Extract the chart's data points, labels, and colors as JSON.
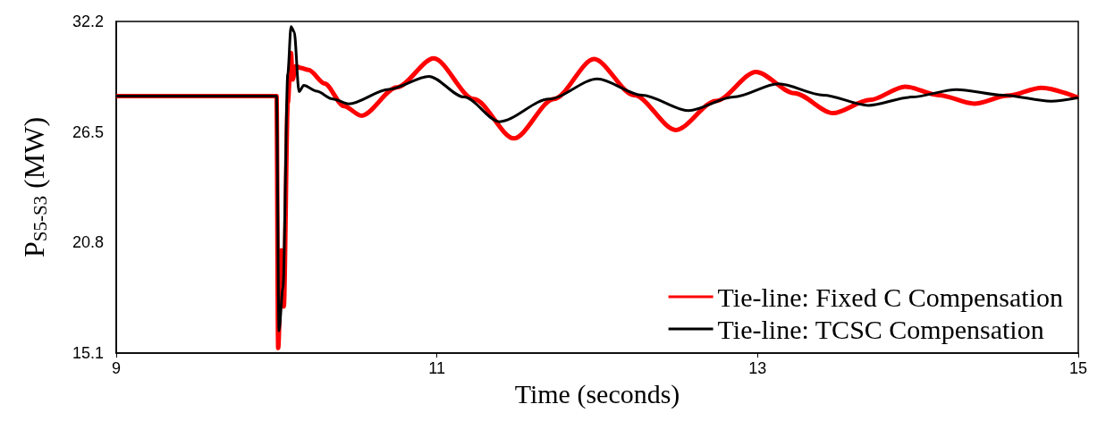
{
  "chart_data": {
    "type": "line",
    "xlabel": "Time (seconds)",
    "ylabel": "P$_{S5-S3}$ (MW)",
    "xlim": [
      9,
      15
    ],
    "xticks": [
      9,
      11,
      13,
      15
    ],
    "ylim": [
      15.1,
      32.2
    ],
    "yticks": [
      15.1,
      20.8,
      26.5,
      32.2
    ],
    "grid": false,
    "legend": "bottom right",
    "marker": "none",
    "line_style": "solid",
    "series": [
      {
        "name": "Tie-line: Fixed C Compensation",
        "color": "#ff0000",
        "x": [
          9,
          10.0,
          10.01,
          10.03,
          10.045,
          10.07,
          10.09,
          10.1,
          10.12,
          10.15,
          10.2,
          10.3,
          10.42,
          10.53,
          10.75,
          10.98,
          11.23,
          11.48,
          11.73,
          11.98,
          12.23,
          12.49,
          12.74,
          12.99,
          13.23,
          13.47,
          13.7,
          13.92,
          14.13,
          14.35,
          14.56,
          14.77,
          15
        ],
        "values": [
          28.35,
          28.35,
          15.36,
          20.4,
          17.5,
          28,
          30.57,
          29.2,
          29.9,
          29.8,
          29.7,
          29.0,
          27.83,
          27.34,
          28.8,
          30.3,
          28.2,
          26.17,
          28.2,
          30.26,
          28.4,
          26.6,
          28.1,
          29.6,
          28.5,
          27.47,
          28.15,
          28.84,
          28.4,
          27.96,
          28.37,
          28.78,
          28.27
        ]
      },
      {
        "name": "Tie-line: TCSC Compensation",
        "color": "#000000",
        "x": [
          9,
          10.0,
          10.015,
          10.04,
          10.07,
          10.09,
          10.11,
          10.14,
          10.17,
          10.25,
          10.35,
          10.45,
          10.7,
          10.95,
          11.17,
          11.39,
          11.7,
          12.0,
          12.28,
          12.57,
          12.85,
          13.13,
          13.41,
          13.69,
          13.96,
          14.24,
          14.53,
          14.83,
          15
        ],
        "values": [
          28.35,
          28.35,
          16.25,
          18.5,
          29.5,
          31.94,
          31.67,
          28.58,
          28.9,
          28.6,
          28.2,
          27.95,
          28.7,
          29.37,
          28.3,
          27.03,
          28.2,
          29.24,
          28.4,
          27.6,
          28.3,
          28.98,
          28.4,
          27.87,
          28.3,
          28.69,
          28.4,
          28.09,
          28.27
        ]
      }
    ]
  }
}
